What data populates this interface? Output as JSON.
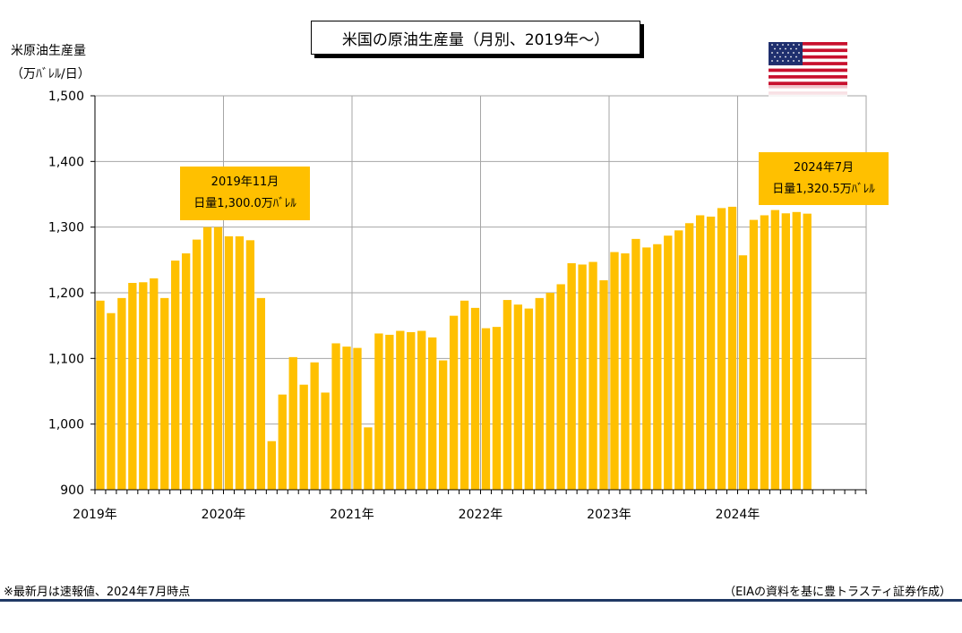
{
  "title": "米国の原油生産量（月別、2019年～）",
  "y_axis_label": [
    "米原油生産量",
    "（万ﾊﾞﾚﾙ/日）"
  ],
  "footnote": "※最新月は速報値、2024年7月時点",
  "source": "（EIAの資料を基に豊トラスティ証券作成）",
  "callouts": {
    "peak": [
      "2019年11月",
      "日量1,300.0万ﾊﾞﾚﾙ"
    ],
    "latest": [
      "2024年7月",
      "日量1,320.5万ﾊﾞﾚﾙ"
    ]
  },
  "colors": {
    "bar": "#ffc000",
    "callout": "#ffc000",
    "rule": "#1f3864",
    "grid": "#a6a6a6"
  },
  "chart_data": {
    "type": "bar",
    "title": "米国の原油生産量（月別、2019年～）",
    "ylabel": "米原油生産量（万ﾊﾞﾚﾙ/日）",
    "xlabel": "",
    "ylim": [
      900,
      1500
    ],
    "yticks": [
      "900",
      "1,000",
      "1,100",
      "1,200",
      "1,300",
      "1,400",
      "1,500"
    ],
    "ytick_values": [
      900,
      1000,
      1100,
      1200,
      1300,
      1400,
      1500
    ],
    "xtick_labels": [
      "2019年",
      "2020年",
      "2021年",
      "2022年",
      "2023年",
      "2024年"
    ],
    "grid": true,
    "categories": [
      "2019-01",
      "2019-02",
      "2019-03",
      "2019-04",
      "2019-05",
      "2019-06",
      "2019-07",
      "2019-08",
      "2019-09",
      "2019-10",
      "2019-11",
      "2019-12",
      "2020-01",
      "2020-02",
      "2020-03",
      "2020-04",
      "2020-05",
      "2020-06",
      "2020-07",
      "2020-08",
      "2020-09",
      "2020-10",
      "2020-11",
      "2020-12",
      "2021-01",
      "2021-02",
      "2021-03",
      "2021-04",
      "2021-05",
      "2021-06",
      "2021-07",
      "2021-08",
      "2021-09",
      "2021-10",
      "2021-11",
      "2021-12",
      "2022-01",
      "2022-02",
      "2022-03",
      "2022-04",
      "2022-05",
      "2022-06",
      "2022-07",
      "2022-08",
      "2022-09",
      "2022-10",
      "2022-11",
      "2022-12",
      "2023-01",
      "2023-02",
      "2023-03",
      "2023-04",
      "2023-05",
      "2023-06",
      "2023-07",
      "2023-08",
      "2023-09",
      "2023-10",
      "2023-11",
      "2023-12",
      "2024-01",
      "2024-02",
      "2024-03",
      "2024-04",
      "2024-05",
      "2024-06",
      "2024-07",
      "2024-08",
      "2024-09",
      "2024-10",
      "2024-11",
      "2024-12"
    ],
    "values": [
      1188,
      1169,
      1192,
      1215,
      1216,
      1222,
      1192,
      1249,
      1260,
      1281,
      1300,
      1300,
      1286,
      1286,
      1280,
      1192,
      974,
      1045,
      1102,
      1060,
      1094,
      1048,
      1123,
      1118,
      1116,
      995,
      1138,
      1136,
      1142,
      1140,
      1142,
      1132,
      1097,
      1165,
      1188,
      1177,
      1146,
      1148,
      1189,
      1182,
      1176,
      1192,
      1200,
      1213,
      1245,
      1243,
      1247,
      1219,
      1262,
      1260,
      1282,
      1269,
      1274,
      1287,
      1295,
      1306,
      1318,
      1316,
      1329,
      1331,
      1257,
      1311,
      1318,
      1326,
      1321,
      1323,
      1320.5,
      null,
      null,
      null,
      null,
      null
    ]
  }
}
